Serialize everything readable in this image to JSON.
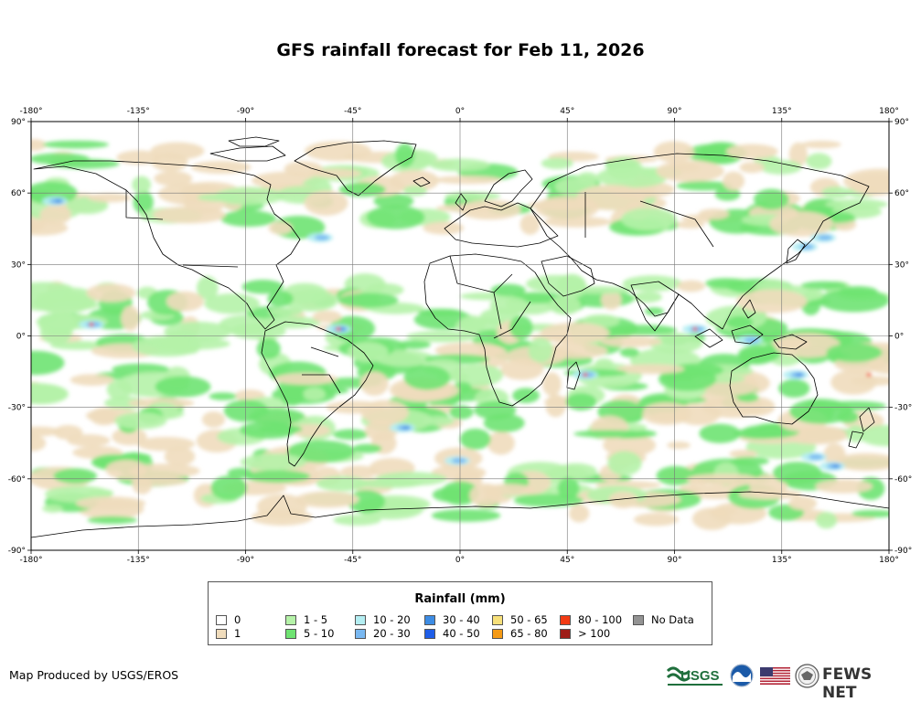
{
  "title": "GFS rainfall forecast for Feb 11, 2026",
  "map": {
    "lon_labels": [
      "-180°",
      "-135°",
      "-90°",
      "-45°",
      "0°",
      "45°",
      "90°",
      "135°",
      "180°"
    ],
    "lat_labels": [
      "90°",
      "60°",
      "30°",
      "0°",
      "-30°",
      "-60°",
      "-90°"
    ],
    "lon_values": [
      -180,
      -135,
      -90,
      -45,
      0,
      45,
      90,
      135,
      180
    ],
    "lat_values": [
      90,
      60,
      30,
      0,
      -30,
      -60,
      -90
    ],
    "gridlines": true
  },
  "legend": {
    "title": "Rainfall (mm)",
    "items": [
      {
        "label": "0",
        "color": "#ffffff"
      },
      {
        "label": "1",
        "color": "#f0dcbc"
      },
      {
        "label": "1 - 5",
        "color": "#b5f2a8"
      },
      {
        "label": "5 - 10",
        "color": "#6fe372"
      },
      {
        "label": "10 - 20",
        "color": "#b4eef2"
      },
      {
        "label": "20 - 30",
        "color": "#79b8f1"
      },
      {
        "label": "30 - 40",
        "color": "#3d8ce4"
      },
      {
        "label": "40 - 50",
        "color": "#1f5ee8"
      },
      {
        "label": "50 - 65",
        "color": "#f7e07a"
      },
      {
        "label": "65 - 80",
        "color": "#f59a15"
      },
      {
        "label": "80 - 100",
        "color": "#f23b14"
      },
      {
        "label": "> 100",
        "color": "#9e1c17"
      },
      {
        "label": "No Data",
        "color": "#939393"
      }
    ]
  },
  "footer": {
    "credit": "Map Produced by USGS/EROS",
    "logos": [
      "usgs-logo",
      "noaa-logo",
      "us-flag",
      "state-department-seal"
    ],
    "fews_text": "FEWS NET",
    "usgs_text": "USGS"
  }
}
